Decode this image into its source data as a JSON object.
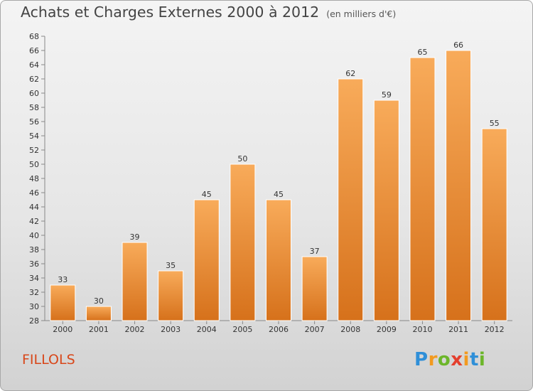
{
  "title": "Achats et Charges Externes 2000 à 2012",
  "subtitle": "(en milliers d'€)",
  "commune": "FILLOLS",
  "logo": "Proxiti",
  "colors": {
    "bar_light": "#f8ab5a",
    "bar_dark": "#d8741d",
    "commune_text": "#d8471a"
  },
  "chart_data": {
    "type": "bar",
    "categories": [
      "2000",
      "2001",
      "2002",
      "2003",
      "2004",
      "2005",
      "2006",
      "2007",
      "2008",
      "2009",
      "2010",
      "2011",
      "2012"
    ],
    "values": [
      33,
      30,
      39,
      35,
      45,
      50,
      45,
      37,
      62,
      59,
      65,
      66,
      55
    ],
    "ylim": [
      28,
      68
    ],
    "yticks": [
      28,
      30,
      32,
      34,
      36,
      38,
      40,
      42,
      44,
      46,
      48,
      50,
      52,
      54,
      56,
      58,
      60,
      62,
      64,
      66,
      68
    ],
    "grid": false,
    "xlabel": "",
    "ylabel": ""
  }
}
